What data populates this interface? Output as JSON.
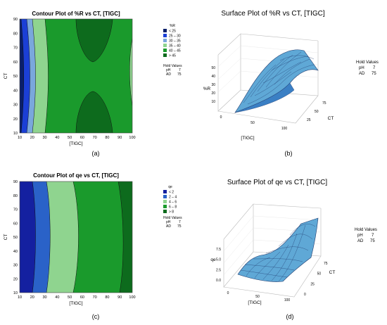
{
  "chart_data": [
    {
      "type": "contour",
      "title": "Contour Plot of %R vs CT, [TIGC]",
      "xlabel": "[TIGC]",
      "ylabel": "CT",
      "xlim": [
        10,
        100
      ],
      "ylim": [
        10,
        90
      ],
      "xticks": [
        "10",
        "20",
        "30",
        "40",
        "50",
        "60",
        "70",
        "80",
        "90",
        "100"
      ],
      "yticks": [
        "10",
        "20",
        "30",
        "40",
        "50",
        "60",
        "70",
        "80",
        "90"
      ],
      "legend_title": "%R",
      "levels": [
        {
          "label": "<  25",
          "color": "#0a1f6a"
        },
        {
          "label": "25 – 30",
          "color": "#1b3fd6"
        },
        {
          "label": "30 – 35",
          "color": "#7aa7dc"
        },
        {
          "label": "35 – 40",
          "color": "#8fd48f"
        },
        {
          "label": "40 – 45",
          "color": "#1a9a2c"
        },
        {
          "label": ">  45",
          "color": "#0d6b1d"
        }
      ],
      "hold_values_title": "Hold Values",
      "hold_values": [
        {
          "name": "pH",
          "value": "7"
        },
        {
          "name": "AD",
          "value": "75"
        }
      ],
      "caption": "(a)"
    },
    {
      "type": "surface",
      "title": "Surface Plot of %R vs CT, [TIGC]",
      "xlabel": "[TIGC]",
      "ylabel": "CT",
      "zlabel": "%R",
      "x_ticks": [
        "0",
        "50",
        "100"
      ],
      "y_ticks": [
        "25",
        "50",
        "75"
      ],
      "z_ticks": [
        "10",
        "20",
        "30",
        "40",
        "50"
      ],
      "hold_values_title": "Hold Values",
      "hold_values": [
        {
          "name": "pH",
          "value": "7"
        },
        {
          "name": "AD",
          "value": "75"
        }
      ],
      "caption": "(b)"
    },
    {
      "type": "contour",
      "title": "Contour Plot of qe vs CT, [TIGC]",
      "xlabel": "[TIGC]",
      "ylabel": "CT",
      "xlim": [
        10,
        100
      ],
      "ylim": [
        10,
        90
      ],
      "xticks": [
        "10",
        "20",
        "30",
        "40",
        "50",
        "60",
        "70",
        "80",
        "90",
        "100"
      ],
      "yticks": [
        "10",
        "20",
        "30",
        "40",
        "50",
        "60",
        "70",
        "80",
        "90"
      ],
      "legend_title": "qe",
      "levels": [
        {
          "label": "<  2",
          "color": "#1420a0"
        },
        {
          "label": "2 – 4",
          "color": "#2a62c8"
        },
        {
          "label": "4 – 6",
          "color": "#8fd48f"
        },
        {
          "label": "6 – 8",
          "color": "#1a9a2c"
        },
        {
          "label": ">  8",
          "color": "#0d6b1d"
        }
      ],
      "hold_values_title": "Hold Values",
      "hold_values": [
        {
          "name": "pH",
          "value": "7"
        },
        {
          "name": "AD",
          "value": "75"
        }
      ],
      "caption": "(c)"
    },
    {
      "type": "surface",
      "title": "Surface Plot of qe vs CT, [TIGC]",
      "xlabel": "[TIGC]",
      "ylabel": "CT",
      "zlabel": "qe",
      "x_ticks": [
        "0",
        "50",
        "100"
      ],
      "y_ticks": [
        "0",
        "25",
        "50",
        "75"
      ],
      "z_ticks": [
        "0.0",
        "2.5",
        "5.0",
        "7.5"
      ],
      "hold_values_title": "Hold Values",
      "hold_values": [
        {
          "name": "pH",
          "value": "7"
        },
        {
          "name": "AD",
          "value": "75"
        }
      ],
      "caption": "(d)"
    }
  ]
}
